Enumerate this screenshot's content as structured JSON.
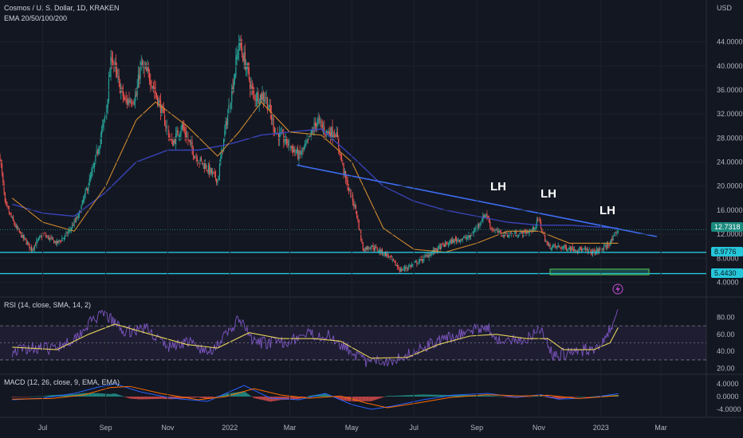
{
  "header": {
    "title": "Cosmos / U. S. Dollar, 1D, KRAKEN",
    "ema_label": "EMA 20/50/100/200",
    "currency": "USD"
  },
  "annotations": {
    "lh1": "LH",
    "lh2": "LH",
    "lh3": "LH"
  },
  "price_labels": {
    "last": "12.7318",
    "support1": "8.9776",
    "support2": "5.4430"
  },
  "indicators": {
    "rsi_label": "RSI (14, close, SMA, 14, 2)",
    "macd_label": "MACD (12, 26, close, 9, EMA, EMA)"
  },
  "colors": {
    "background": "#131722",
    "up": "#26a69a",
    "down": "#ef5350",
    "trendline": "#3d6df2",
    "support": "#26c6da",
    "ema_orange": "#d18b2c",
    "ema_blue": "#3e48c8",
    "rsi": "#7e57c2",
    "rsi_ma": "#e6d35a",
    "macd": "#2962ff",
    "macd_signal": "#ff6d00",
    "last_price": "#1b8a7e"
  },
  "chart_data": [
    {
      "type": "candlestick",
      "title": "Cosmos / U. S. Dollar, 1D, KRAKEN",
      "y_ticks": [
        "44.0000",
        "40.0000",
        "36.0000",
        "32.0000",
        "28.0000",
        "24.0000",
        "20.0000",
        "16.0000",
        "12.0000",
        "8.0000",
        "4.0000"
      ],
      "x_ticks": [
        "Jul",
        "Sep",
        "Nov",
        "2022",
        "Mar",
        "May",
        "Jul",
        "Sep",
        "Nov",
        "2023",
        "Mar"
      ],
      "ylim": [
        3,
        47
      ],
      "price_path": [
        [
          "2021-05-20",
          25.0
        ],
        [
          "2021-05-25",
          17.0
        ],
        [
          "2021-06-05",
          13.0
        ],
        [
          "2021-06-20",
          9.5
        ],
        [
          "2021-07-01",
          12.0
        ],
        [
          "2021-07-15",
          10.5
        ],
        [
          "2021-07-25",
          12.0
        ],
        [
          "2021-08-05",
          15.0
        ],
        [
          "2021-08-20",
          23.0
        ],
        [
          "2021-09-01",
          32.0
        ],
        [
          "2021-09-07",
          42.0
        ],
        [
          "2021-09-12",
          38.0
        ],
        [
          "2021-09-20",
          34.0
        ],
        [
          "2021-10-01",
          35.0
        ],
        [
          "2021-10-05",
          40.0
        ],
        [
          "2021-10-15",
          38.0
        ],
        [
          "2021-10-25",
          33.0
        ],
        [
          "2021-11-05",
          27.0
        ],
        [
          "2021-11-15",
          30.0
        ],
        [
          "2021-11-28",
          25.0
        ],
        [
          "2021-12-10",
          23.0
        ],
        [
          "2021-12-20",
          21.0
        ],
        [
          "2021-12-28",
          30.0
        ],
        [
          "2022-01-05",
          38.0
        ],
        [
          "2022-01-10",
          44.0
        ],
        [
          "2022-01-17",
          40.0
        ],
        [
          "2022-01-24",
          35.0
        ],
        [
          "2022-02-05",
          35.0
        ],
        [
          "2022-02-15",
          29.0
        ],
        [
          "2022-02-28",
          27.0
        ],
        [
          "2022-03-10",
          25.0
        ],
        [
          "2022-03-18",
          27.0
        ],
        [
          "2022-03-28",
          31.0
        ],
        [
          "2022-04-05",
          29.0
        ],
        [
          "2022-04-15",
          29.0
        ],
        [
          "2022-04-25",
          21.0
        ],
        [
          "2022-05-05",
          16.0
        ],
        [
          "2022-05-12",
          9.5
        ],
        [
          "2022-05-20",
          10.0
        ],
        [
          "2022-06-05",
          8.5
        ],
        [
          "2022-06-18",
          6.0
        ],
        [
          "2022-07-01",
          7.0
        ],
        [
          "2022-07-15",
          8.5
        ],
        [
          "2022-07-28",
          10.0
        ],
        [
          "2022-08-10",
          11.0
        ],
        [
          "2022-08-25",
          11.5
        ],
        [
          "2022-09-10",
          15.5
        ],
        [
          "2022-09-15",
          13.0
        ],
        [
          "2022-09-25",
          12.0
        ],
        [
          "2022-10-10",
          12.0
        ],
        [
          "2022-10-25",
          12.5
        ],
        [
          "2022-11-01",
          14.5
        ],
        [
          "2022-11-05",
          12.0
        ],
        [
          "2022-11-10",
          10.0
        ],
        [
          "2022-11-25",
          9.8
        ],
        [
          "2022-12-10",
          9.5
        ],
        [
          "2022-12-25",
          9.0
        ],
        [
          "2023-01-05",
          9.8
        ],
        [
          "2023-01-12",
          11.0
        ],
        [
          "2023-01-18",
          12.7318
        ]
      ],
      "ema_20_50_path": [
        [
          "2021-06-01",
          18.0
        ],
        [
          "2021-07-01",
          14.0
        ],
        [
          "2021-08-01",
          12.5
        ],
        [
          "2021-09-01",
          20.0
        ],
        [
          "2021-10-01",
          31.0
        ],
        [
          "2021-10-20",
          34.0
        ],
        [
          "2021-11-20",
          30.0
        ],
        [
          "2021-12-20",
          25.0
        ],
        [
          "2022-01-10",
          29.0
        ],
        [
          "2022-02-01",
          34.0
        ],
        [
          "2022-03-01",
          29.0
        ],
        [
          "2022-04-01",
          28.5
        ],
        [
          "2022-05-01",
          24.0
        ],
        [
          "2022-06-01",
          13.0
        ],
        [
          "2022-07-01",
          9.5
        ],
        [
          "2022-08-01",
          9.0
        ],
        [
          "2022-09-01",
          10.5
        ],
        [
          "2022-10-01",
          12.5
        ],
        [
          "2022-11-01",
          12.5
        ],
        [
          "2022-12-01",
          10.5
        ],
        [
          "2023-01-18",
          10.5
        ]
      ],
      "ema_100_200_path": [
        [
          "2021-06-01",
          17.0
        ],
        [
          "2021-07-01",
          15.5
        ],
        [
          "2021-08-01",
          15.0
        ],
        [
          "2021-09-01",
          19.0
        ],
        [
          "2021-10-01",
          24.0
        ],
        [
          "2021-11-01",
          26.0
        ],
        [
          "2021-12-01",
          26.0
        ],
        [
          "2022-01-01",
          27.0
        ],
        [
          "2022-02-01",
          28.5
        ],
        [
          "2022-03-01",
          29.0
        ],
        [
          "2022-04-01",
          29.5
        ],
        [
          "2022-05-01",
          25.0
        ],
        [
          "2022-06-01",
          20.0
        ],
        [
          "2022-07-01",
          17.5
        ],
        [
          "2022-08-01",
          16.0
        ],
        [
          "2022-09-01",
          15.0
        ],
        [
          "2022-10-01",
          14.0
        ],
        [
          "2022-11-01",
          13.5
        ],
        [
          "2022-12-01",
          13.5
        ],
        [
          "2023-01-18",
          13.0
        ]
      ],
      "trendline": [
        [
          "2022-03-08",
          23.5
        ],
        [
          "2023-02-25",
          11.6
        ]
      ],
      "support_levels": [
        8.9776,
        5.443
      ],
      "annotations": [
        {
          "text": "LH",
          "x": "2022-09-12",
          "y": 19.5
        },
        {
          "text": "LH",
          "x": "2022-11-02",
          "y": 18.0
        },
        {
          "text": "LH",
          "x": "2023-01-02",
          "y": 15.5
        }
      ],
      "last_price": 12.7318
    },
    {
      "type": "line",
      "title": "RSI (14, close, SMA, 14, 2)",
      "y_ticks": [
        "80.00",
        "60.00",
        "40.00",
        "20.00"
      ],
      "ylim": [
        15,
        100
      ],
      "bands": [
        70,
        50,
        30
      ],
      "rsi_path": [
        [
          "2021-06-01",
          40
        ],
        [
          "2021-06-20",
          45
        ],
        [
          "2021-07-10",
          43
        ],
        [
          "2021-08-01",
          55
        ],
        [
          "2021-08-20",
          78
        ],
        [
          "2021-09-01",
          83
        ],
        [
          "2021-09-20",
          62
        ],
        [
          "2021-10-10",
          68
        ],
        [
          "2021-11-01",
          45
        ],
        [
          "2021-11-20",
          52
        ],
        [
          "2021-12-10",
          38
        ],
        [
          "2021-12-28",
          58
        ],
        [
          "2022-01-10",
          78
        ],
        [
          "2022-01-25",
          50
        ],
        [
          "2022-02-20",
          50
        ],
        [
          "2022-03-20",
          60
        ],
        [
          "2022-04-10",
          58
        ],
        [
          "2022-05-01",
          40
        ],
        [
          "2022-05-15",
          27
        ],
        [
          "2022-06-10",
          30
        ],
        [
          "2022-07-01",
          40
        ],
        [
          "2022-07-20",
          50
        ],
        [
          "2022-08-15",
          60
        ],
        [
          "2022-09-10",
          70
        ],
        [
          "2022-09-25",
          50
        ],
        [
          "2022-10-20",
          55
        ],
        [
          "2022-11-02",
          68
        ],
        [
          "2022-11-15",
          35
        ],
        [
          "2022-12-10",
          40
        ],
        [
          "2022-12-28",
          45
        ],
        [
          "2023-01-10",
          65
        ],
        [
          "2023-01-18",
          85
        ]
      ],
      "rsi_ma_path": [
        [
          "2021-06-01",
          45
        ],
        [
          "2021-07-15",
          42
        ],
        [
          "2021-08-15",
          60
        ],
        [
          "2021-09-10",
          72
        ],
        [
          "2021-10-15",
          60
        ],
        [
          "2021-11-20",
          48
        ],
        [
          "2021-12-20",
          44
        ],
        [
          "2022-01-20",
          62
        ],
        [
          "2022-02-20",
          55
        ],
        [
          "2022-03-25",
          55
        ],
        [
          "2022-04-20",
          52
        ],
        [
          "2022-05-20",
          32
        ],
        [
          "2022-06-25",
          33
        ],
        [
          "2022-07-25",
          48
        ],
        [
          "2022-08-25",
          58
        ],
        [
          "2022-09-20",
          60
        ],
        [
          "2022-10-20",
          55
        ],
        [
          "2022-11-10",
          55
        ],
        [
          "2022-11-25",
          42
        ],
        [
          "2022-12-25",
          42
        ],
        [
          "2023-01-10",
          50
        ],
        [
          "2023-01-18",
          68
        ]
      ]
    },
    {
      "type": "bar",
      "title": "MACD (12, 26, close, 9, EMA, EMA)",
      "y_ticks": [
        "4.0000",
        "0.0000",
        "-4.0000"
      ],
      "ylim": [
        -6,
        6
      ],
      "macd_path": [
        [
          "2021-06-01",
          -1.0
        ],
        [
          "2021-07-01",
          -0.5
        ],
        [
          "2021-08-01",
          1.0
        ],
        [
          "2021-08-25",
          3.0
        ],
        [
          "2021-09-10",
          4.0
        ],
        [
          "2021-10-05",
          1.5
        ],
        [
          "2021-11-05",
          -0.5
        ],
        [
          "2021-12-10",
          -1.5
        ],
        [
          "2022-01-08",
          2.5
        ],
        [
          "2022-01-15",
          3.5
        ],
        [
          "2022-02-10",
          -0.5
        ],
        [
          "2022-03-10",
          -1.0
        ],
        [
          "2022-04-05",
          1.0
        ],
        [
          "2022-05-01",
          -2.5
        ],
        [
          "2022-05-20",
          -4.0
        ],
        [
          "2022-06-10",
          -3.0
        ],
        [
          "2022-07-10",
          -1.0
        ],
        [
          "2022-08-10",
          0.5
        ],
        [
          "2022-09-12",
          1.0
        ],
        [
          "2022-10-10",
          -0.2
        ],
        [
          "2022-11-03",
          0.6
        ],
        [
          "2022-11-20",
          -0.8
        ],
        [
          "2022-12-20",
          -0.4
        ],
        [
          "2023-01-18",
          0.9
        ]
      ],
      "signal_path": [
        [
          "2021-06-01",
          -0.8
        ],
        [
          "2021-07-10",
          -0.6
        ],
        [
          "2021-08-10",
          0.5
        ],
        [
          "2021-09-05",
          2.8
        ],
        [
          "2021-09-25",
          3.2
        ],
        [
          "2021-10-25",
          1.0
        ],
        [
          "2021-12-01",
          -1.0
        ],
        [
          "2021-12-28",
          0.0
        ],
        [
          "2022-01-25",
          2.5
        ],
        [
          "2022-02-20",
          0.5
        ],
        [
          "2022-03-20",
          -0.5
        ],
        [
          "2022-04-20",
          0.2
        ],
        [
          "2022-05-15",
          -2.0
        ],
        [
          "2022-06-05",
          -3.5
        ],
        [
          "2022-07-05",
          -2.0
        ],
        [
          "2022-08-05",
          -0.3
        ],
        [
          "2022-09-10",
          0.6
        ],
        [
          "2022-10-15",
          0.2
        ],
        [
          "2022-11-10",
          0.4
        ],
        [
          "2022-12-10",
          -0.6
        ],
        [
          "2023-01-18",
          0.3
        ]
      ]
    }
  ]
}
